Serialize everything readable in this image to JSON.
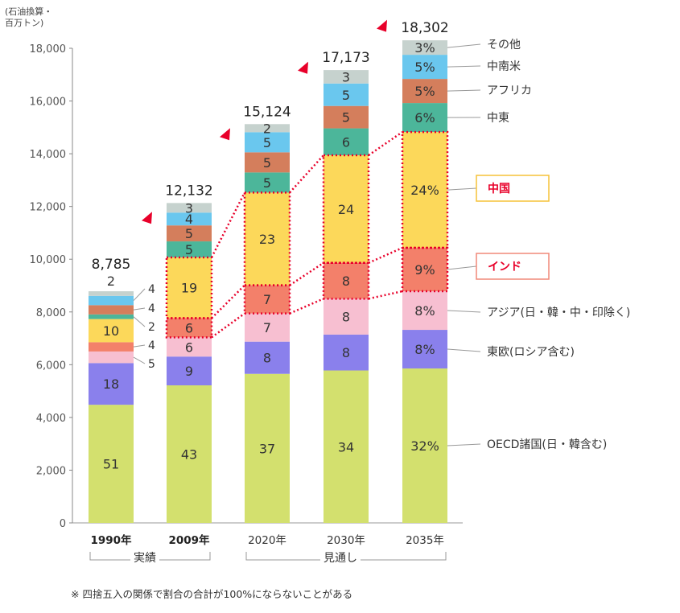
{
  "chart_data": {
    "type": "stacked-bar",
    "unit_label_line1": "(石油換算・",
    "unit_label_line2": "百万トン)",
    "ylim": [
      0,
      18000
    ],
    "yticks": [
      "0",
      "2,000",
      "4,000",
      "6,000",
      "8,000",
      "10,000",
      "12,000",
      "14,000",
      "16,000",
      "18,000"
    ],
    "categories": [
      "1990年",
      "2009年",
      "2020年",
      "2030年",
      "2035年"
    ],
    "category_bold": [
      true,
      true,
      false,
      false,
      false
    ],
    "totals": [
      8785,
      12132,
      15124,
      17173,
      18302
    ],
    "total_labels": [
      "8,785",
      "12,132",
      "15,124",
      "17,173",
      "18,302"
    ],
    "series": [
      {
        "name": "OECD諸国(日・韓含む)",
        "color": "#d3e06e",
        "shares": [
          51,
          43,
          37,
          34,
          32
        ],
        "labels": [
          "51",
          "43",
          "37",
          "34",
          "32%"
        ]
      },
      {
        "name": "東欧(ロシア含む)",
        "color": "#8a80ec",
        "shares": [
          18,
          9,
          8,
          8,
          8
        ],
        "labels": [
          "18",
          "9",
          "8",
          "8",
          "8%"
        ]
      },
      {
        "name": "アジア(日・韓・中・印除く)",
        "color": "#f7bfd1",
        "shares": [
          5,
          6,
          7,
          8,
          8
        ],
        "labels": [
          "",
          "6",
          "7",
          "8",
          "8%"
        ]
      },
      {
        "name": "インド",
        "color": "#f3806a",
        "shares": [
          4,
          6,
          7,
          8,
          9
        ],
        "labels": [
          "",
          "6",
          "7",
          "8",
          "9%"
        ]
      },
      {
        "name": "中国",
        "color": "#fcd85a",
        "shares": [
          10,
          19,
          23,
          24,
          24
        ],
        "labels": [
          "10",
          "19",
          "23",
          "24",
          "24%"
        ]
      },
      {
        "name": "中東",
        "color": "#4cb69a",
        "shares": [
          2,
          5,
          5,
          6,
          6
        ],
        "labels": [
          "",
          "5",
          "5",
          "6",
          "6%"
        ]
      },
      {
        "name": "アフリカ",
        "color": "#d47e5c",
        "shares": [
          4,
          5,
          5,
          5,
          5
        ],
        "labels": [
          "",
          "5",
          "5",
          "5",
          "5%"
        ]
      },
      {
        "name": "中南米",
        "color": "#6ac7ee",
        "shares": [
          4,
          4,
          5,
          5,
          5
        ],
        "labels": [
          "",
          "4",
          "5",
          "5",
          "5%"
        ]
      },
      {
        "name": "その他",
        "color": "#c6d2ce",
        "shares": [
          2,
          3,
          2,
          3,
          3
        ],
        "labels": [
          "2",
          "3",
          "2",
          "3",
          "3%"
        ]
      }
    ],
    "side_labels_1990": [
      "4",
      "4",
      "2",
      "4",
      "5"
    ],
    "highlight_boxes": [
      "中国",
      "インド"
    ],
    "highlight_color": "#e8002a",
    "groups": [
      "実績",
      "見通し"
    ],
    "note": "※ 四捨五入の関係で割合の合計が100%にならないことがある"
  }
}
